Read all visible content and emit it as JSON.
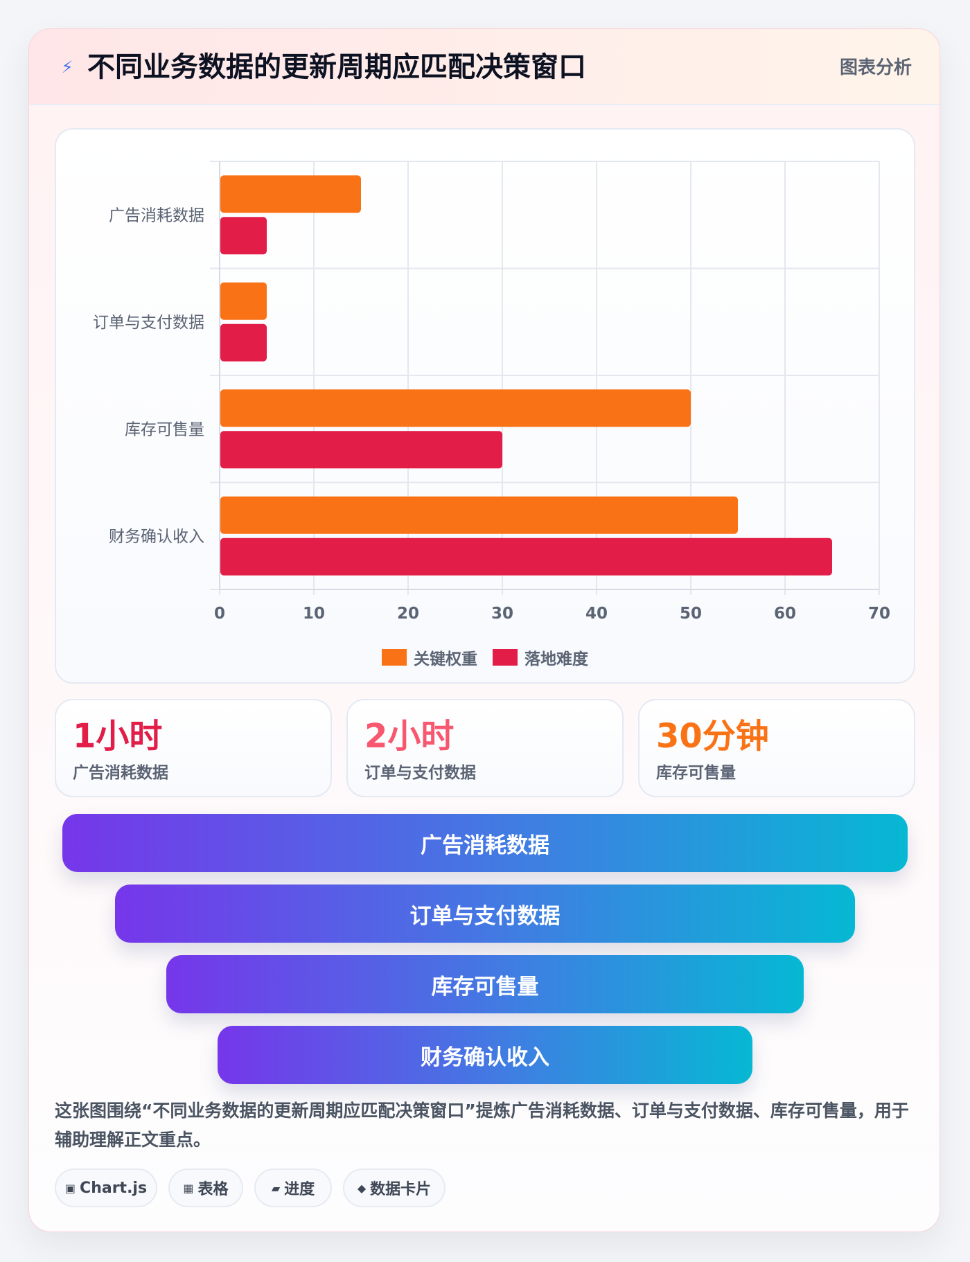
{
  "header": {
    "title": "不同业务数据的更新周期应匹配决策窗口",
    "tag": "图表分析",
    "icon": "lightning-icon"
  },
  "chart_data": {
    "type": "bar",
    "orientation": "horizontal",
    "categories": [
      "广告消耗数据",
      "订单与支付数据",
      "库存可售量",
      "财务确认收入"
    ],
    "series": [
      {
        "name": "关键权重",
        "color": "#f97316",
        "values": [
          15,
          5,
          50,
          55
        ]
      },
      {
        "name": "落地难度",
        "color": "#e11d48",
        "values": [
          5,
          5,
          30,
          65
        ]
      }
    ],
    "xlim": [
      0,
      70
    ],
    "xticks": [
      0,
      10,
      20,
      30,
      40,
      50,
      60,
      70
    ],
    "grid": true,
    "legend": "bottom-center",
    "title": "",
    "xlabel": "",
    "ylabel": ""
  },
  "stats": [
    {
      "value": "1小时",
      "label": "广告消耗数据",
      "color": "#e11d48"
    },
    {
      "value": "2小时",
      "label": "订单与支付数据",
      "color": "#f7586f"
    },
    {
      "value": "30分钟",
      "label": "库存可售量",
      "color": "#f97316"
    }
  ],
  "funnel": [
    "广告消耗数据",
    "订单与支付数据",
    "库存可售量",
    "财务确认收入"
  ],
  "summary": "这张图围绕“不同业务数据的更新周期应匹配决策窗口”提炼广告消耗数据、订单与支付数据、库存可售量，用于辅助理解正文重点。",
  "tags": [
    {
      "icon": "chip-icon",
      "glyph": "▣",
      "label": "Chart.js"
    },
    {
      "icon": "table-icon",
      "glyph": "▦",
      "label": "表格"
    },
    {
      "icon": "progress-icon",
      "glyph": "▰",
      "label": "进度"
    },
    {
      "icon": "diamond-icon",
      "glyph": "◆",
      "label": "数据卡片"
    }
  ]
}
